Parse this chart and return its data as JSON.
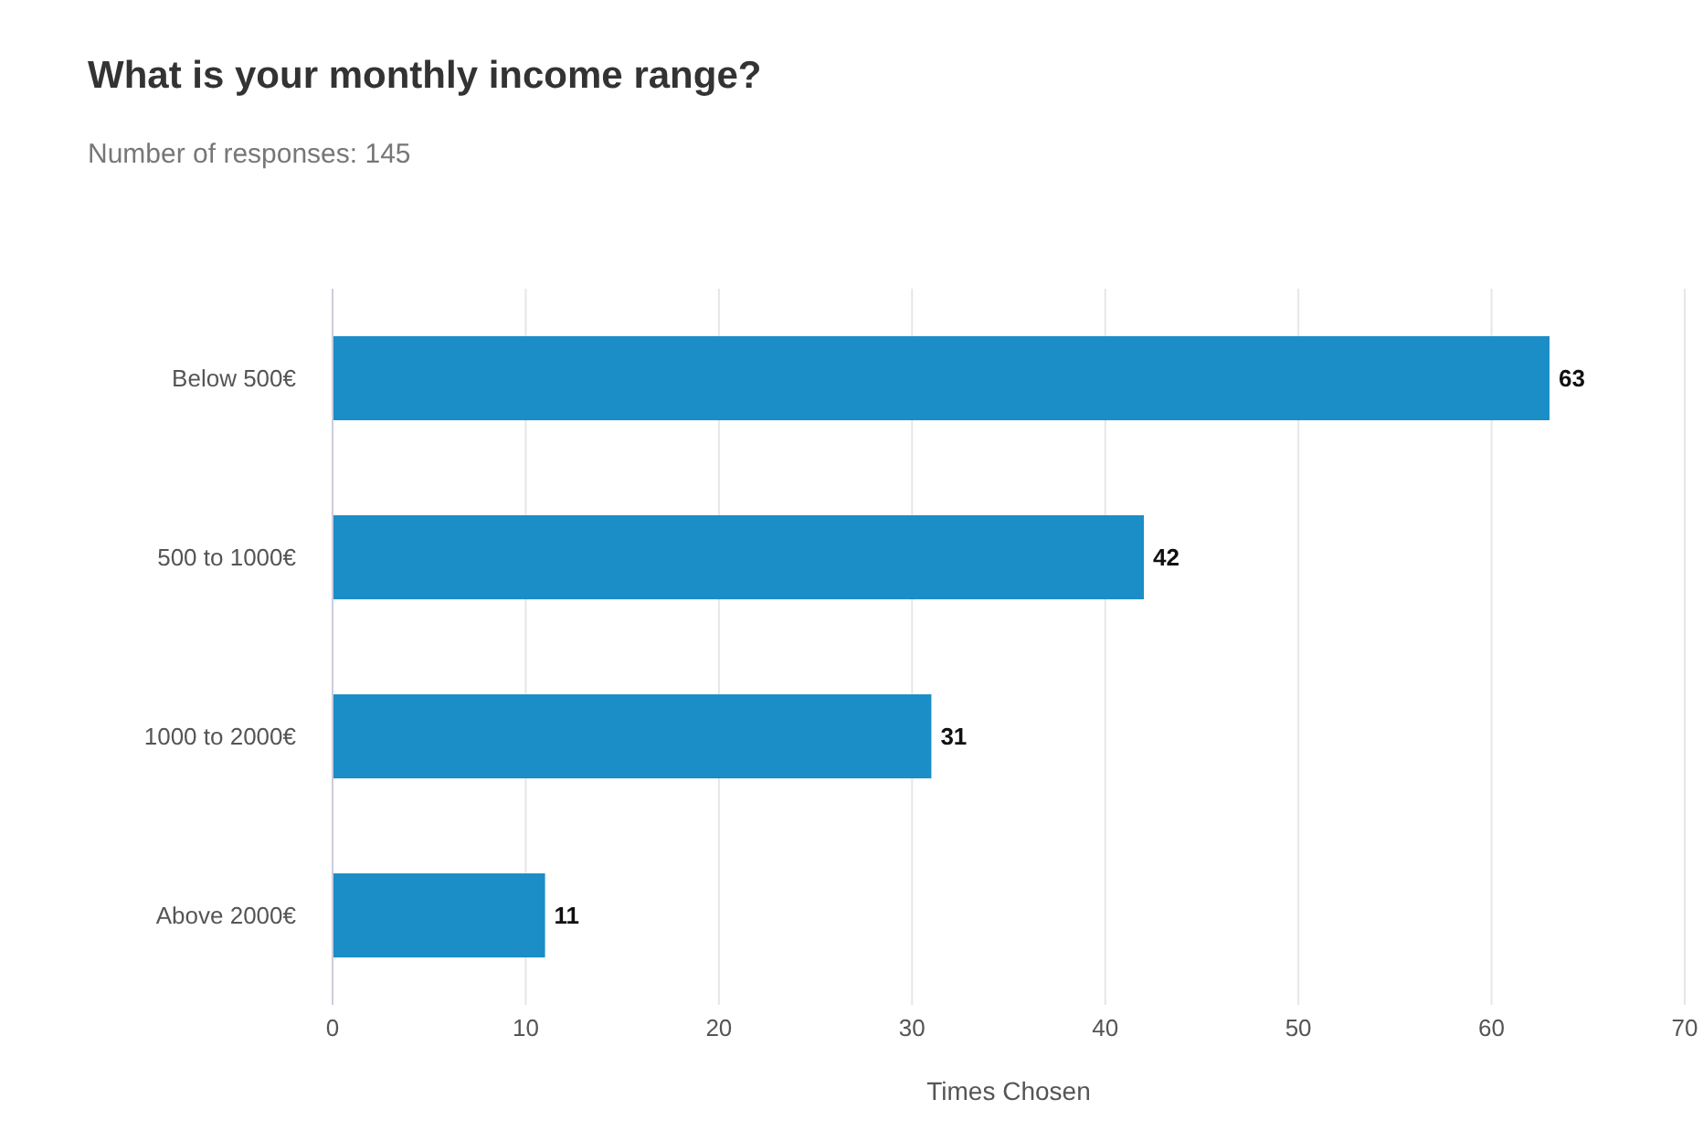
{
  "chart_data": {
    "type": "bar",
    "orientation": "horizontal",
    "title": "What is your monthly income range?",
    "subtitle": "Number of responses: 145",
    "xlabel": "Times Chosen",
    "categories": [
      "Below 500€",
      "500 to 1000€",
      "1000 to 2000€",
      "Above 2000€"
    ],
    "values": [
      63,
      42,
      31,
      11
    ],
    "color": "#1b8ec7",
    "xlim": [
      0,
      70
    ],
    "xticks": [
      0,
      10,
      20,
      30,
      40,
      50,
      60,
      70
    ],
    "grid": "x",
    "data_labels": true
  }
}
